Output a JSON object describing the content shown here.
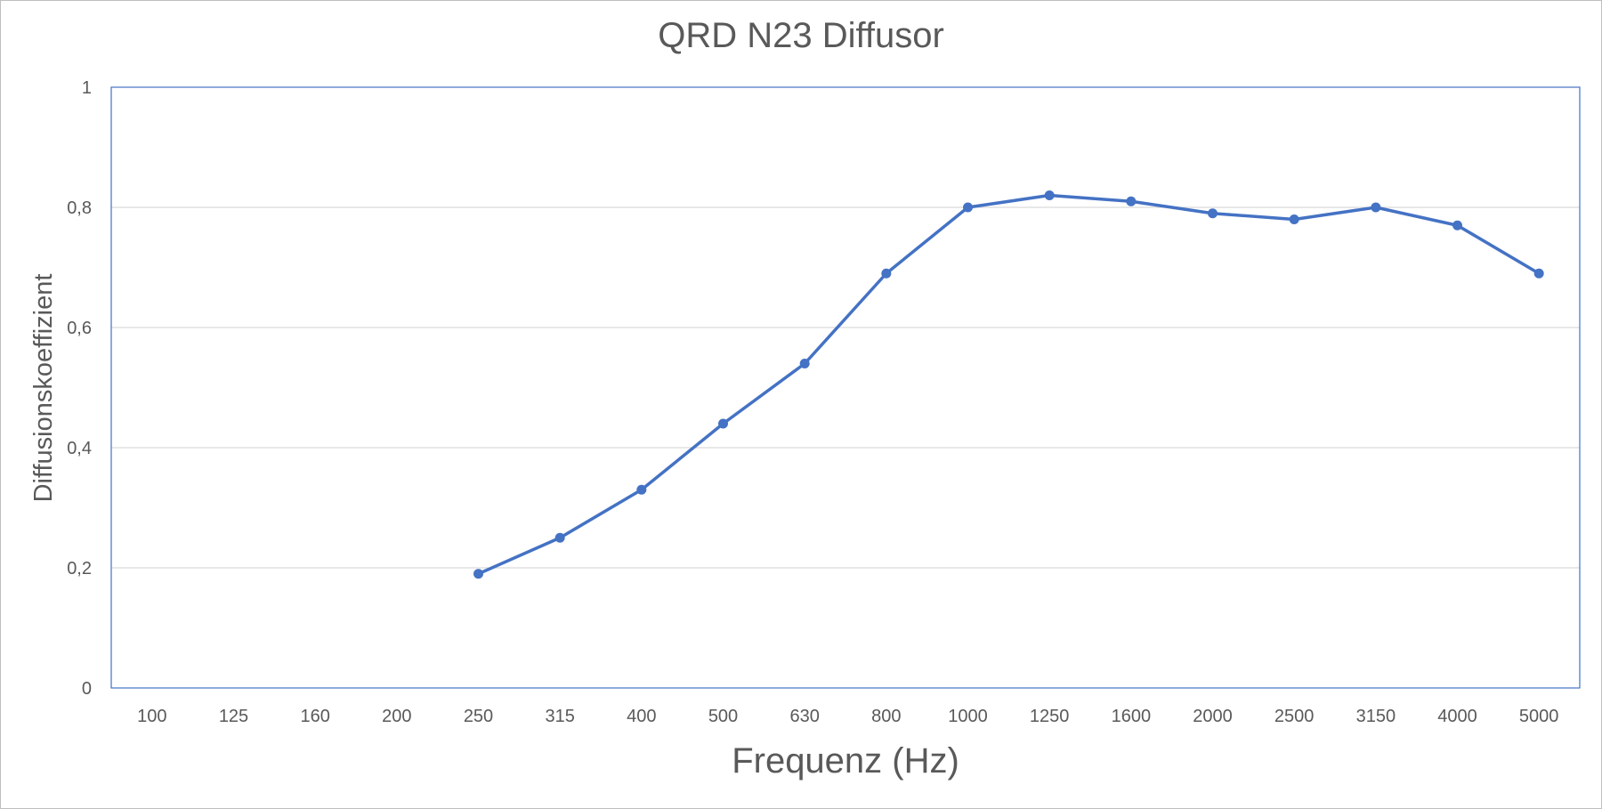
{
  "chart_data": {
    "type": "line",
    "title": "QRD N23 Diffusor",
    "xlabel": "Frequenz (Hz)",
    "ylabel": "Diffusionskoeffizient",
    "categories": [
      "100",
      "125",
      "160",
      "200",
      "250",
      "315",
      "400",
      "500",
      "630",
      "800",
      "1000",
      "1250",
      "1600",
      "2000",
      "2500",
      "3150",
      "4000",
      "5000"
    ],
    "series": [
      {
        "values": [
          null,
          null,
          null,
          null,
          0.19,
          0.25,
          0.33,
          0.44,
          0.54,
          0.69,
          0.8,
          0.82,
          0.81,
          0.79,
          0.78,
          0.8,
          0.77,
          0.69
        ],
        "color": "#4472c4"
      }
    ],
    "ylim": [
      0,
      1
    ],
    "yticks": [
      0,
      0.2,
      0.4,
      0.6,
      0.8,
      1
    ],
    "ytick_labels": [
      "0",
      "0,2",
      "0,4",
      "0,6",
      "0,8",
      "1"
    ],
    "grid": true,
    "gridline_color": "#d9d9d9",
    "plot_border_color": "#4472c4",
    "legend": "none"
  }
}
